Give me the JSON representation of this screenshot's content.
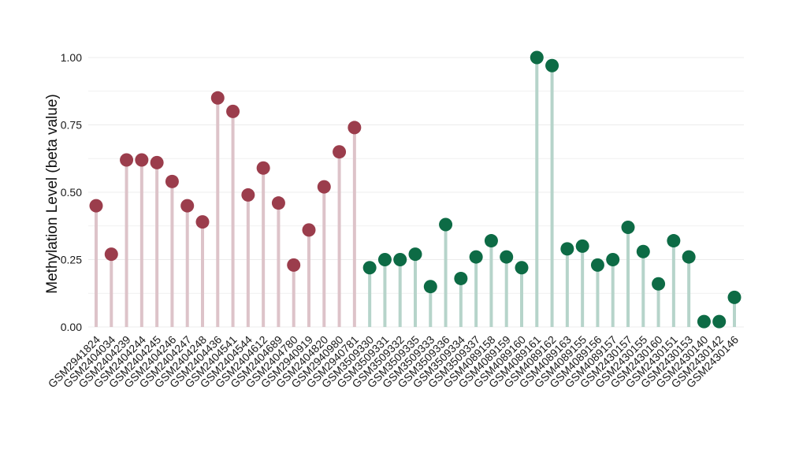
{
  "chart_data": {
    "type": "lollipop",
    "ylabel": "Methylation Level (beta value)",
    "xlabel": "",
    "title": "",
    "ylim": [
      0,
      1
    ],
    "yticks": [
      "0.00",
      "0.25",
      "0.50",
      "0.75",
      "1.00"
    ],
    "grid": true,
    "legend": "none",
    "colors": {
      "group1_point": "#9b3d4c",
      "group1_stem": "#ddc3c9",
      "group2_point": "#0d6b45",
      "group2_stem": "#b6d4ca",
      "grid": "#ececec"
    },
    "categories": [
      "GSM2941824",
      "GSM2404034",
      "GSM2404239",
      "GSM2404244",
      "GSM2404245",
      "GSM2404246",
      "GSM2404247",
      "GSM2404248",
      "GSM2404436",
      "GSM2404541",
      "GSM2404544",
      "GSM2404612",
      "GSM2404689",
      "GSM2404780",
      "GSM2940919",
      "GSM2404820",
      "GSM2940980",
      "GSM2940781",
      "GSM3509330",
      "GSM3509331",
      "GSM3509332",
      "GSM3509335",
      "GSM3509333",
      "GSM3509336",
      "GSM3509334",
      "GSM3509337",
      "GSM4089158",
      "GSM4089159",
      "GSM4089160",
      "GSM4089161",
      "GSM4089162",
      "GSM4089163",
      "GSM4089155",
      "GSM4089156",
      "GSM4089157",
      "GSM2430157",
      "GSM2430155",
      "GSM2430160",
      "GSM2430151",
      "GSM2430153",
      "GSM2430140",
      "GSM2430142",
      "GSM2430146"
    ],
    "values": [
      0.45,
      0.27,
      0.62,
      0.62,
      0.61,
      0.54,
      0.45,
      0.39,
      0.85,
      0.8,
      0.49,
      0.59,
      0.46,
      0.23,
      0.36,
      0.52,
      0.65,
      0.74,
      0.22,
      0.25,
      0.25,
      0.27,
      0.15,
      0.38,
      0.18,
      0.26,
      0.32,
      0.26,
      0.22,
      1.0,
      0.97,
      0.29,
      0.3,
      0.23,
      0.25,
      0.37,
      0.28,
      0.16,
      0.32,
      0.26,
      0.02,
      0.02,
      0.11
    ],
    "groups": [
      1,
      1,
      1,
      1,
      1,
      1,
      1,
      1,
      1,
      1,
      1,
      1,
      1,
      1,
      1,
      1,
      1,
      1,
      2,
      2,
      2,
      2,
      2,
      2,
      2,
      2,
      2,
      2,
      2,
      2,
      2,
      2,
      2,
      2,
      2,
      2,
      2,
      2,
      2,
      2,
      2,
      2,
      2
    ]
  }
}
